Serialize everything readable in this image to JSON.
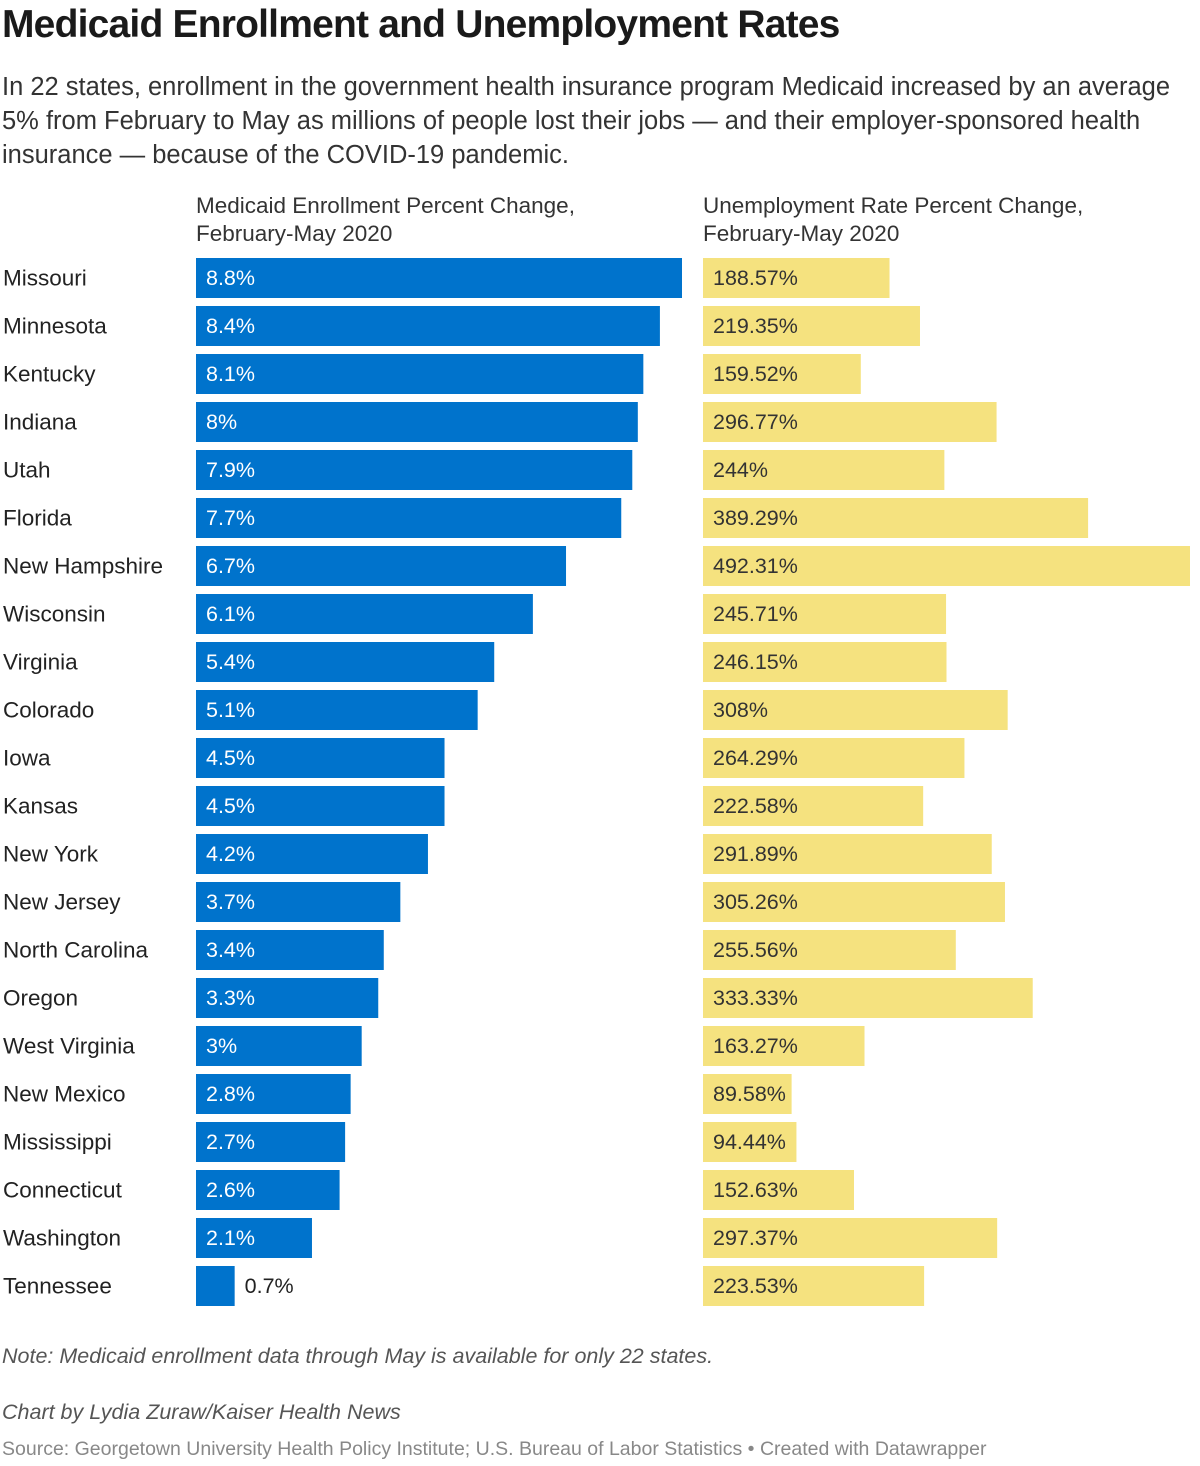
{
  "title": "Medicaid Enrollment and Unemployment Rates",
  "subtitle": "In 22 states, enrollment in the government health insurance program Medicaid increased by an average 5% from February to May as millions of people lost their jobs — and their employer-sponsored health insurance — because of the COVID-19 pandemic.",
  "chart_data": {
    "type": "bar",
    "orientation": "horizontal",
    "categories": [
      "Missouri",
      "Minnesota",
      "Kentucky",
      "Indiana",
      "Utah",
      "Florida",
      "New Hampshire",
      "Wisconsin",
      "Virginia",
      "Colorado",
      "Iowa",
      "Kansas",
      "New York",
      "New Jersey",
      "North Carolina",
      "Oregon",
      "West Virginia",
      "New Mexico",
      "Mississippi",
      "Connecticut",
      "Washington",
      "Tennessee"
    ],
    "series": [
      {
        "name": "Medicaid Enrollment Percent Change, February-May 2020",
        "header_line1": "Medicaid Enrollment Percent Change,",
        "header_line2": "February-May 2020",
        "color": "#0073cc",
        "label_color": "#ffffff",
        "values": [
          8.8,
          8.4,
          8.1,
          8,
          7.9,
          7.7,
          6.7,
          6.1,
          5.4,
          5.1,
          4.5,
          4.5,
          4.2,
          3.7,
          3.4,
          3.3,
          3,
          2.8,
          2.7,
          2.6,
          2.1,
          0.7
        ],
        "labels": [
          "8.8%",
          "8.4%",
          "8.1%",
          "8%",
          "7.9%",
          "7.7%",
          "6.7%",
          "6.1%",
          "5.4%",
          "5.1%",
          "4.5%",
          "4.5%",
          "4.2%",
          "3.7%",
          "3.4%",
          "3.3%",
          "3%",
          "2.8%",
          "2.7%",
          "2.6%",
          "2.1%",
          "0.7%"
        ],
        "xlim": [
          0,
          8.8
        ]
      },
      {
        "name": "Unemployment Rate Percent Change, February-May 2020",
        "header_line1": "Unemployment Rate Percent Change,",
        "header_line2": "February-May 2020",
        "color": "#f5e27f",
        "label_color": "#333333",
        "values": [
          188.57,
          219.35,
          159.52,
          296.77,
          244,
          389.29,
          492.31,
          245.71,
          246.15,
          308,
          264.29,
          222.58,
          291.89,
          305.26,
          255.56,
          333.33,
          163.27,
          89.58,
          94.44,
          152.63,
          297.37,
          223.53
        ],
        "labels": [
          "188.57%",
          "219.35%",
          "159.52%",
          "296.77%",
          "244%",
          "389.29%",
          "492.31%",
          "245.71%",
          "246.15%",
          "308%",
          "264.29%",
          "222.58%",
          "291.89%",
          "305.26%",
          "255.56%",
          "333.33%",
          "163.27%",
          "89.58%",
          "94.44%",
          "152.63%",
          "297.37%",
          "223.53%"
        ],
        "xlim": [
          0,
          492.31
        ]
      }
    ],
    "xlabel": "",
    "ylabel": "",
    "grid": false,
    "legend": "none"
  },
  "note": "Note: Medicaid enrollment data through May is available for only 22 states.",
  "byline": "Chart by Lydia Zuraw/Kaiser Health News",
  "source": "Source: Georgetown University Health Policy Institute; U.S. Bureau of Labor Statistics",
  "credit": "Created with Datawrapper"
}
